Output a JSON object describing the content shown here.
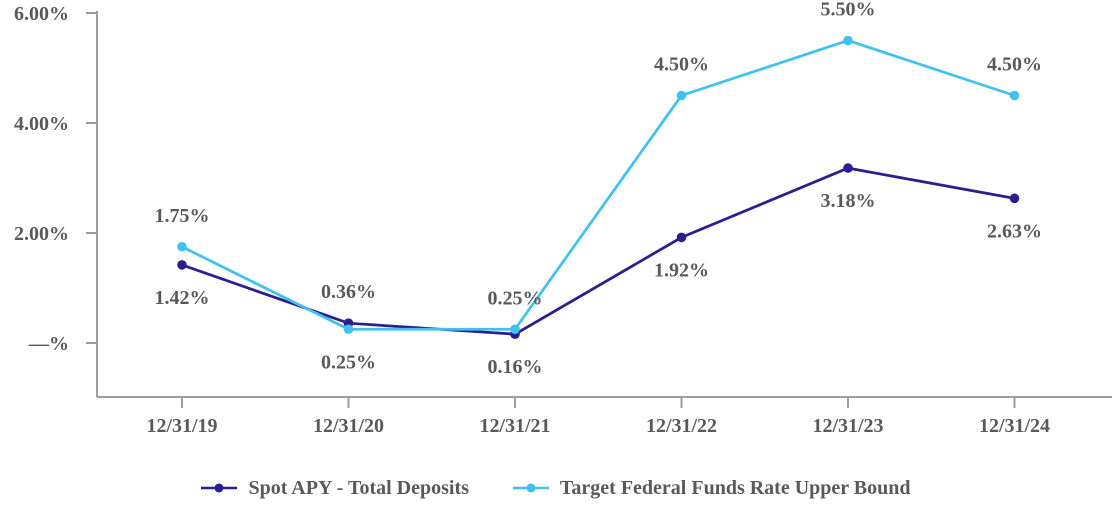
{
  "chart_data": {
    "type": "line",
    "title": "",
    "xlabel": "",
    "ylabel": "",
    "grid": false,
    "legend_position": "bottom",
    "text_color": "#595959",
    "axis_color": "#9d9d9d",
    "background": "#ffffff",
    "x": [
      "12/31/19",
      "12/31/20",
      "12/31/21",
      "12/31/22",
      "12/31/23",
      "12/31/24"
    ],
    "y_axis": {
      "range": [
        -0.99,
        6.05
      ],
      "ticks": [
        {
          "label": "6.00%",
          "value": 6
        },
        {
          "label": "4.00%",
          "value": 4
        },
        {
          "label": "2.00%",
          "value": 2
        },
        {
          "label": "—%",
          "value": 0
        }
      ]
    },
    "series": [
      {
        "name": "Spot APY - Total Deposits",
        "color": "#2b1e8f",
        "values": [
          1.42,
          0.36,
          0.16,
          1.92,
          3.18,
          2.63
        ],
        "point_labels": [
          "1.42%",
          "0.36%",
          "0.16%",
          "1.92%",
          "3.18%",
          "2.63%"
        ],
        "label_sides": [
          "below",
          "above",
          "below",
          "below",
          "below",
          "below"
        ]
      },
      {
        "name": "Target Federal Funds Rate Upper Bound",
        "color": "#41c1f0",
        "values": [
          1.75,
          0.25,
          0.25,
          4.5,
          5.5,
          4.5
        ],
        "point_labels": [
          "1.75%",
          "0.25%",
          "0.25%",
          "4.50%",
          "5.50%",
          "4.50%"
        ],
        "label_sides": [
          "above",
          "below",
          "above",
          "above",
          "above",
          "above"
        ]
      }
    ]
  }
}
